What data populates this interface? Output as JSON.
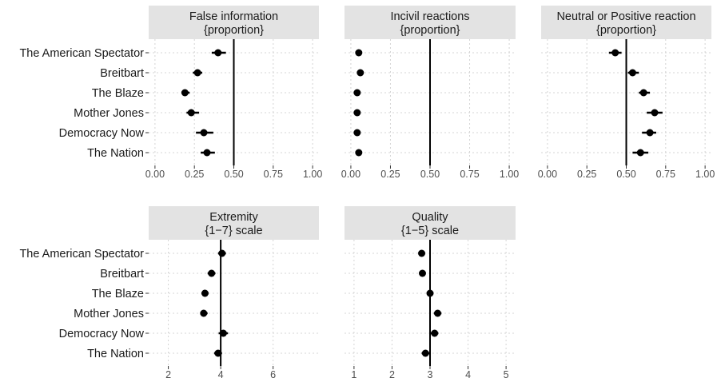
{
  "chart_data": {
    "type": "scatter",
    "variant": "dot-and-whisker small multiples",
    "categories": [
      "The American Spectator",
      "Breitbart",
      "The Blaze",
      "Mother Jones",
      "Democracy Now",
      "The Nation"
    ],
    "colors": {
      "point": "#000000",
      "strip": "#e3e3e3",
      "grid": "#d4d4d4",
      "reference_line": "#000000"
    },
    "grid": true,
    "panels": [
      {
        "title_line1": "False information",
        "title_line2": "{proportion}",
        "xlim": [
          -0.04,
          1.04
        ],
        "ticks": [
          0,
          0.25,
          0.5,
          0.75,
          1
        ],
        "tick_labels": [
          "0.00",
          "0.25",
          "0.50",
          "0.75",
          "1.00"
        ],
        "reference": 0.5,
        "estimates": [
          0.4,
          0.27,
          0.19,
          0.23,
          0.31,
          0.33
        ],
        "ci_low": [
          0.36,
          0.24,
          0.17,
          0.2,
          0.26,
          0.29
        ],
        "ci_high": [
          0.45,
          0.3,
          0.22,
          0.28,
          0.37,
          0.38
        ]
      },
      {
        "title_line1": "Incivil reactions",
        "title_line2": "{proportion}",
        "xlim": [
          -0.04,
          1.04
        ],
        "ticks": [
          0,
          0.25,
          0.5,
          0.75,
          1
        ],
        "tick_labels": [
          "0.00",
          "0.25",
          "0.50",
          "0.75",
          "1.00"
        ],
        "reference": 0.5,
        "estimates": [
          0.05,
          0.06,
          0.04,
          0.04,
          0.04,
          0.05
        ],
        "ci_low": [
          0.04,
          0.05,
          0.035,
          0.035,
          0.035,
          0.04
        ],
        "ci_high": [
          0.06,
          0.07,
          0.05,
          0.05,
          0.05,
          0.06
        ]
      },
      {
        "title_line1": "Neutral or Positive reaction",
        "title_line2": "{proportion}",
        "xlim": [
          -0.04,
          1.04
        ],
        "ticks": [
          0,
          0.25,
          0.5,
          0.75,
          1
        ],
        "tick_labels": [
          "0.00",
          "0.25",
          "0.50",
          "0.75",
          "1.00"
        ],
        "reference": 0.5,
        "estimates": [
          0.43,
          0.54,
          0.61,
          0.68,
          0.65,
          0.59
        ],
        "ci_low": [
          0.39,
          0.51,
          0.58,
          0.63,
          0.6,
          0.54
        ],
        "ci_high": [
          0.47,
          0.58,
          0.65,
          0.73,
          0.69,
          0.64
        ]
      },
      {
        "title_line1": "Extremity",
        "title_line2": "{1−7} scale",
        "xlim": [
          1.25,
          7.75
        ],
        "ticks": [
          2,
          4,
          6
        ],
        "tick_labels": [
          "2",
          "4",
          "6"
        ],
        "reference": 4,
        "estimates": [
          4.05,
          3.65,
          3.4,
          3.35,
          4.1,
          3.9
        ],
        "ci_low": [
          3.9,
          3.5,
          3.27,
          3.22,
          3.92,
          3.75
        ],
        "ci_high": [
          4.2,
          3.8,
          3.53,
          3.5,
          4.28,
          4.05
        ]
      },
      {
        "title_line1": "Quality",
        "title_line2": "{1−5} scale",
        "xlim": [
          0.75,
          5.25
        ],
        "ticks": [
          1,
          2,
          3,
          4,
          5
        ],
        "tick_labels": [
          "1",
          "2",
          "3",
          "4",
          "5"
        ],
        "reference": 3,
        "estimates": [
          2.78,
          2.8,
          3.0,
          3.2,
          3.12,
          2.88
        ],
        "ci_low": [
          2.7,
          2.72,
          2.92,
          3.1,
          3.02,
          2.78
        ],
        "ci_high": [
          2.86,
          2.88,
          3.08,
          3.3,
          3.22,
          2.98
        ]
      }
    ]
  }
}
